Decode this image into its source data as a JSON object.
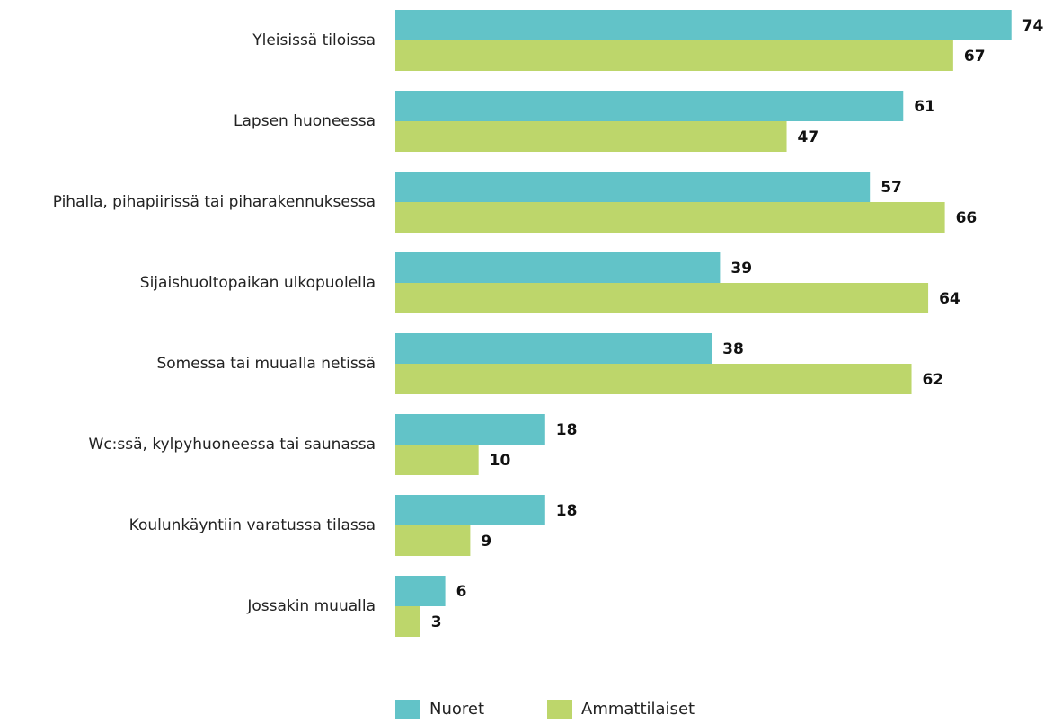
{
  "chart_data": {
    "type": "hbar",
    "categories": [
      "Yleisissä tiloissa",
      "Lapsen huoneessa",
      "Pihalla, pihapiirissä tai piharakennuksessa",
      "Sijaishuoltopaikan ulkopuolella",
      "Somessa tai muualla netissä",
      "Wc:ssä, kylpyhuoneessa tai saunassa",
      "Koulunkäyntiin varatussa tilassa",
      "Jossakin muualla"
    ],
    "series": [
      {
        "name": "Nuoret",
        "color": "#62c3c8",
        "values": [
          74,
          61,
          57,
          39,
          38,
          18,
          18,
          6
        ]
      },
      {
        "name": "Ammattilaiset",
        "color": "#bdd66b",
        "values": [
          67,
          47,
          66,
          64,
          62,
          10,
          9,
          3
        ]
      }
    ],
    "xlim": [
      0,
      75
    ]
  }
}
